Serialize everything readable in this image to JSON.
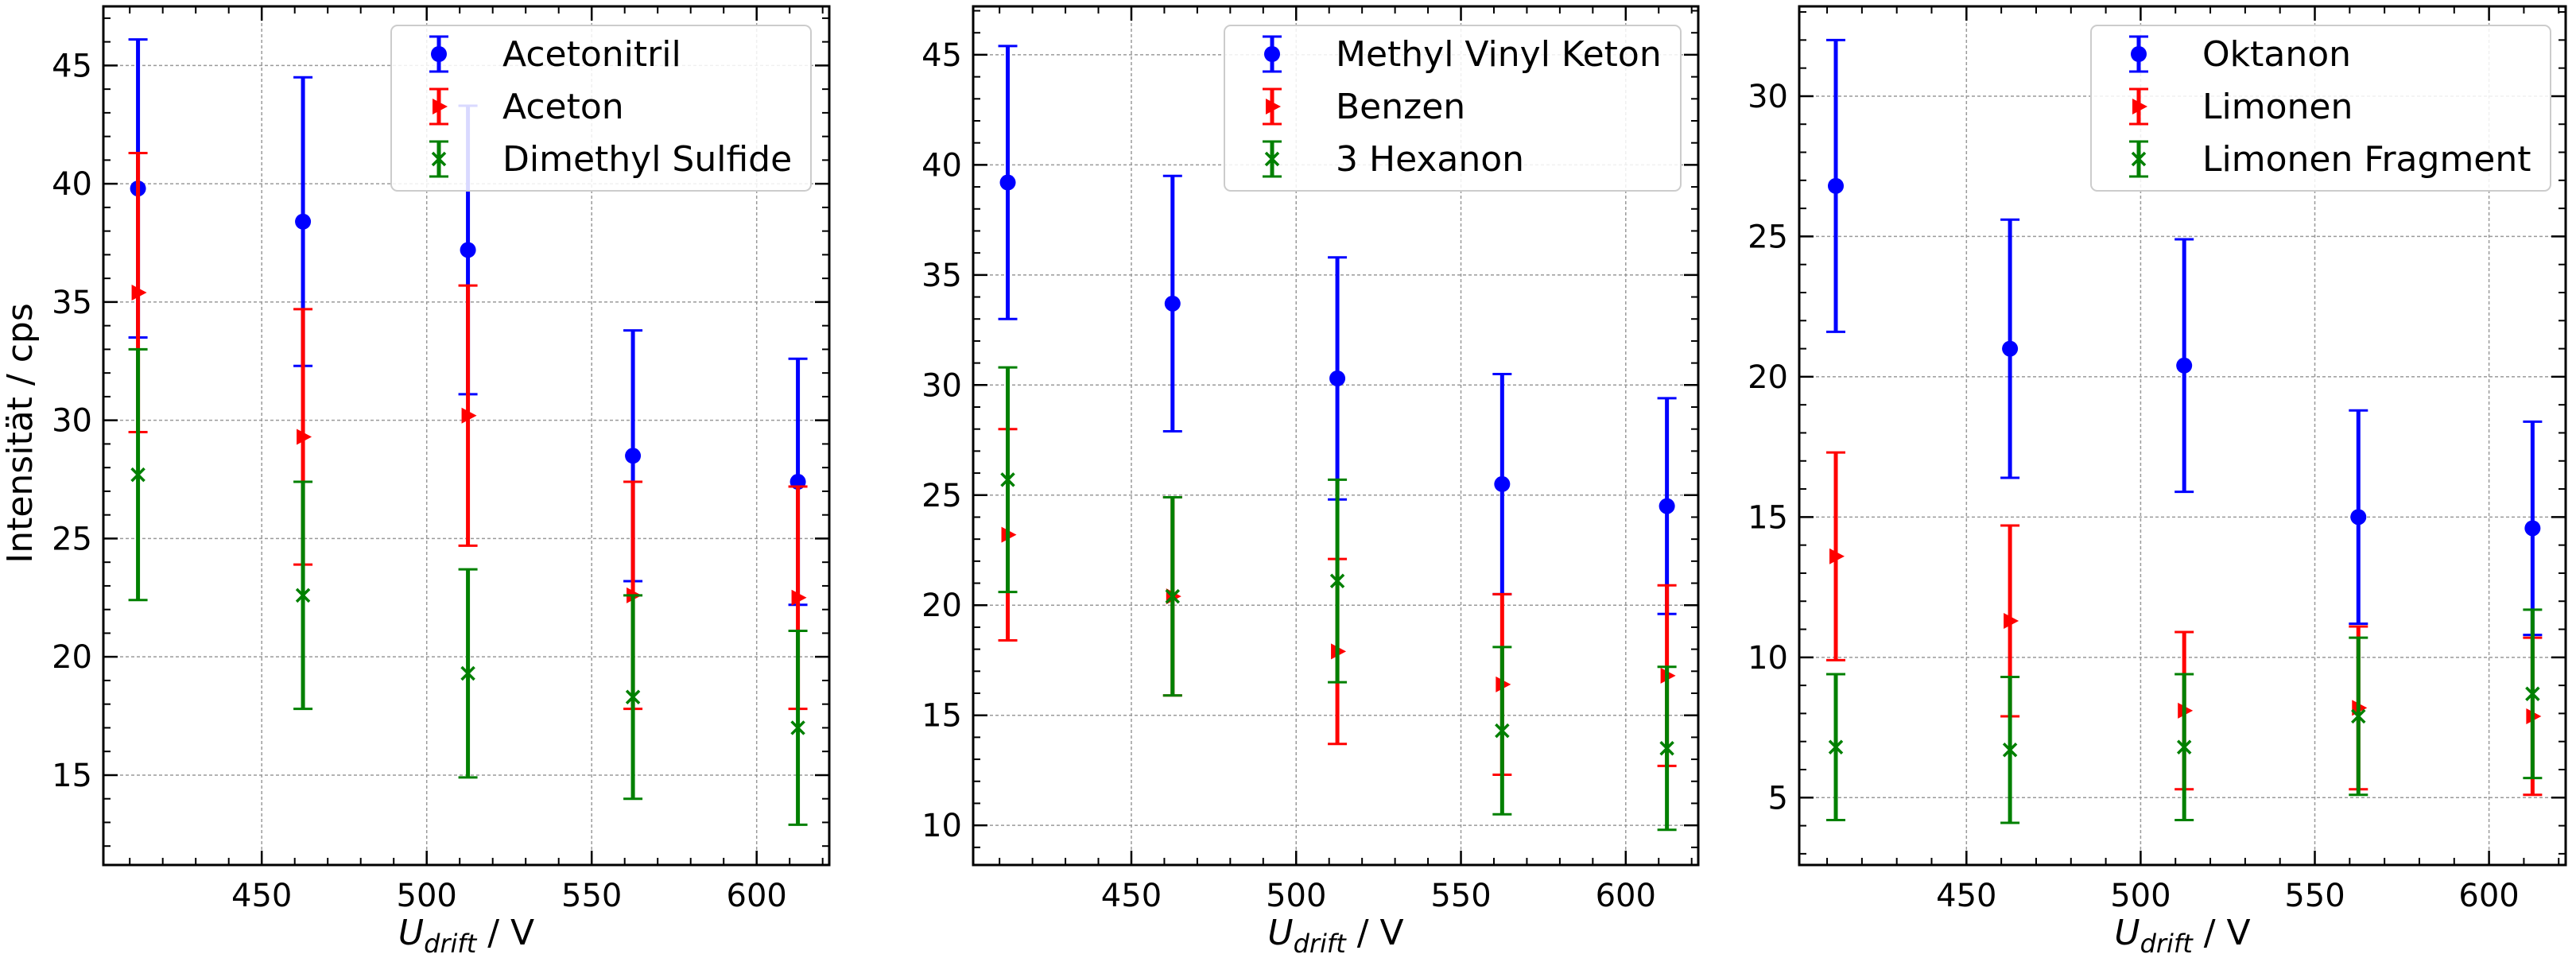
{
  "figure": {
    "ylabel": "Intensität / cps",
    "xlabel_main": "U",
    "xlabel_sub": "drift",
    "xlabel_unit": " / V"
  },
  "chart_data": [
    {
      "type": "scatter",
      "x": [
        412.5,
        462.5,
        512.5,
        562.5,
        612.5
      ],
      "xlim": [
        402,
        622
      ],
      "ylim": [
        11.2,
        47.5
      ],
      "xticks": [
        450,
        500,
        550,
        600
      ],
      "yticks": [
        15,
        20,
        25,
        30,
        35,
        40,
        45
      ],
      "grid": true,
      "legend_position": "top-right",
      "series": [
        {
          "name": "Acetonitril",
          "color": "#0000ff",
          "marker": "circle",
          "values": [
            39.8,
            38.4,
            37.2,
            28.5,
            27.4
          ],
          "errors": [
            6.3,
            6.1,
            6.1,
            5.3,
            5.2
          ]
        },
        {
          "name": "Aceton",
          "color": "#ff0000",
          "marker": "triangle-right",
          "values": [
            35.4,
            29.3,
            30.2,
            22.6,
            22.5
          ],
          "errors": [
            5.9,
            5.4,
            5.5,
            4.8,
            4.7
          ]
        },
        {
          "name": "Dimethyl Sulfide",
          "color": "#008000",
          "marker": "x",
          "values": [
            27.7,
            22.6,
            19.3,
            18.3,
            17.0
          ],
          "errors": [
            5.3,
            4.8,
            4.4,
            4.3,
            4.1
          ]
        }
      ]
    },
    {
      "type": "scatter",
      "x": [
        412.5,
        462.5,
        512.5,
        562.5,
        612.5
      ],
      "xlim": [
        402,
        622
      ],
      "ylim": [
        8.2,
        47.2
      ],
      "xticks": [
        450,
        500,
        550,
        600
      ],
      "yticks": [
        10,
        15,
        20,
        25,
        30,
        35,
        40,
        45
      ],
      "grid": true,
      "legend_position": "top-right",
      "series": [
        {
          "name": "Methyl Vinyl Keton",
          "color": "#0000ff",
          "marker": "circle",
          "values": [
            39.2,
            33.7,
            30.3,
            25.5,
            24.5
          ],
          "errors": [
            6.2,
            5.8,
            5.5,
            5.0,
            4.9
          ]
        },
        {
          "name": "Benzen",
          "color": "#ff0000",
          "marker": "triangle-right",
          "values": [
            23.2,
            20.4,
            17.9,
            16.4,
            16.8
          ],
          "errors": [
            4.8,
            4.5,
            4.2,
            4.1,
            4.1
          ]
        },
        {
          "name": "3 Hexanon",
          "color": "#008000",
          "marker": "x",
          "values": [
            25.7,
            20.4,
            21.1,
            14.3,
            13.5
          ],
          "errors": [
            5.1,
            4.5,
            4.6,
            3.8,
            3.7
          ]
        }
      ]
    },
    {
      "type": "scatter",
      "x": [
        412.5,
        462.5,
        512.5,
        562.5,
        612.5
      ],
      "xlim": [
        402,
        622
      ],
      "ylim": [
        2.6,
        33.2
      ],
      "xticks": [
        450,
        500,
        550,
        600
      ],
      "yticks": [
        5,
        10,
        15,
        20,
        25,
        30
      ],
      "grid": true,
      "legend_position": "top-right",
      "series": [
        {
          "name": "Oktanon",
          "color": "#0000ff",
          "marker": "circle",
          "values": [
            26.8,
            21.0,
            20.4,
            15.0,
            14.6
          ],
          "errors": [
            5.2,
            4.6,
            4.5,
            3.8,
            3.8
          ]
        },
        {
          "name": "Limonen",
          "color": "#ff0000",
          "marker": "triangle-right",
          "values": [
            13.6,
            11.3,
            8.1,
            8.2,
            7.9
          ],
          "errors": [
            3.7,
            3.4,
            2.8,
            2.9,
            2.8
          ]
        },
        {
          "name": "Limonen Fragment",
          "color": "#008000",
          "marker": "x",
          "values": [
            6.8,
            6.7,
            6.8,
            7.9,
            8.7
          ],
          "errors": [
            2.6,
            2.6,
            2.6,
            2.8,
            3.0
          ]
        }
      ]
    }
  ]
}
